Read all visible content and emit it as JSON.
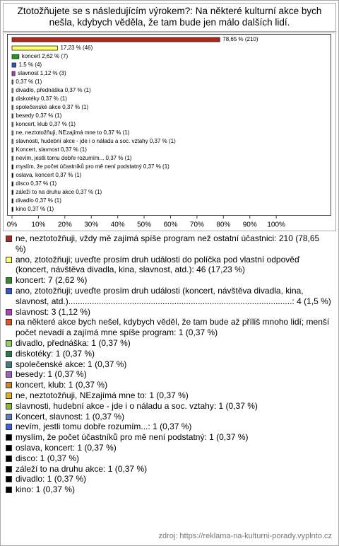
{
  "chart_data": {
    "type": "bar",
    "orientation": "horizontal",
    "title": "Ztotožňujete se s následujícím výrokem?: Na některé kulturní akce bych nešla, kdybych věděla, že tam bude jen málo dalších lidí.",
    "categories": [
      "ne, neztotožňuji, vždy mě zajímá spíše program než ostatní účastnici: 210 (78,65 %)",
      "ano, ztotožňuji; uveďte prosím druh události do políčka pod vlastní odpověď (koncert, návštěva divadla, kina, slavnost, atd.): 46 (17,23 %)",
      "koncert: 7 (2,62 %)",
      "ano, ztotožňuji; uveďte prosím druh události (koncert, návštěva divadla, kina, slavnost, atd.)...............................................................................................: 4 (1,5 %)",
      "slavnost: 3 (1,12 %)",
      "na některé akce bych nešel, kdybych věděl, že tam bude až příliš mnoho lidí; menší počet nevadí a zajímá mne spíše program: 1 (0,37 %)",
      "divadlo, přednáška: 1 (0,37 %)",
      "diskotéky: 1 (0,37 %)",
      "společenské akce: 1 (0,37 %)",
      "besedy: 1 (0,37 %)",
      "koncert, klub: 1 (0,37 %)",
      "ne, neztotožňuji, NEzajímá mne to: 1 (0,37 %)",
      "slavnosti, hudební akce - jde i o náladu a soc. vztahy: 1 (0,37 %)",
      "Koncert, slavnost: 1 (0,37 %)",
      "nevím, jestli tomu dobře rozumím...: 1 (0,37 %)",
      "myslím, že počet účastníků pro mě není podstatný: 1 (0,37 %)",
      "oslava, koncert: 1 (0,37 %)",
      "disco: 1 (0,37 %)",
      "záleží to na druhu akce: 1 (0,37 %)",
      "divadlo: 1 (0,37 %)",
      "kino: 1 (0,37 %)"
    ],
    "values": [
      78.65,
      17.23,
      2.62,
      1.5,
      1.12,
      0.37,
      0.37,
      0.37,
      0.37,
      0.37,
      0.37,
      0.37,
      0.37,
      0.37,
      0.37,
      0.37,
      0.37,
      0.37,
      0.37,
      0.37,
      0.37
    ],
    "value_labels": [
      "78,65 % (210)",
      "17,23 % (46)",
      "koncert 2,62 % (7)",
      "1,5 % (4)",
      "slavnost 1,12 % (3)",
      "0,37 % (1)",
      "divadlo, přednáška 0,37 % (1)",
      "diskotéky 0,37 % (1)",
      "společenské akce 0,37 % (1)",
      "besedy 0,37 % (1)",
      "koncert, klub 0,37 % (1)",
      "ne, neztotožňuji, NEzajímá mne to 0,37 % (1)",
      "slavnosti, hudební akce - jde i o náladu a soc. vztahy 0,37 % (1)",
      "Koncert, slavnost 0,37 % (1)",
      "nevím, jestli tomu dobře rozumím... 0,37 % (1)",
      "myslím, že počet účastníků pro mě není podstatný 0,37 % (1)",
      "oslava, koncert 0,37 % (1)",
      "disco 0,37 % (1)",
      "záleží to na druhu akce 0,37 % (1)",
      "divadlo 0,37 % (1)",
      "kino 0,37 % (1)"
    ],
    "colors": [
      "#b3261e",
      "#ffff66",
      "#1f9a1f",
      "#3355cc",
      "#b040c0",
      "#e05020",
      "#90d060",
      "#208040",
      "#408080",
      "#a060c0",
      "#e08020",
      "#e0b020",
      "#80c020",
      "#6080c0",
      "#4060e0",
      "#000000",
      "#000000",
      "#000000",
      "#000000",
      "#000000",
      "#000000"
    ],
    "xlim": [
      0,
      120
    ],
    "xticks": [
      {
        "value": 0,
        "label": "0%"
      },
      {
        "value": 10,
        "label": "10%"
      },
      {
        "value": 20,
        "label": "20%"
      },
      {
        "value": 30,
        "label": "30%"
      },
      {
        "value": 40,
        "label": "40%"
      },
      {
        "value": 50,
        "label": "50%"
      },
      {
        "value": 60,
        "label": "60%"
      },
      {
        "value": 70,
        "label": "70%"
      },
      {
        "value": 80,
        "label": "80%"
      },
      {
        "value": 90,
        "label": "90%"
      },
      {
        "value": 100,
        "label": "100%"
      }
    ],
    "source": "zdroj: https://reklama-na-kulturni-porady.vyplnto.cz"
  }
}
